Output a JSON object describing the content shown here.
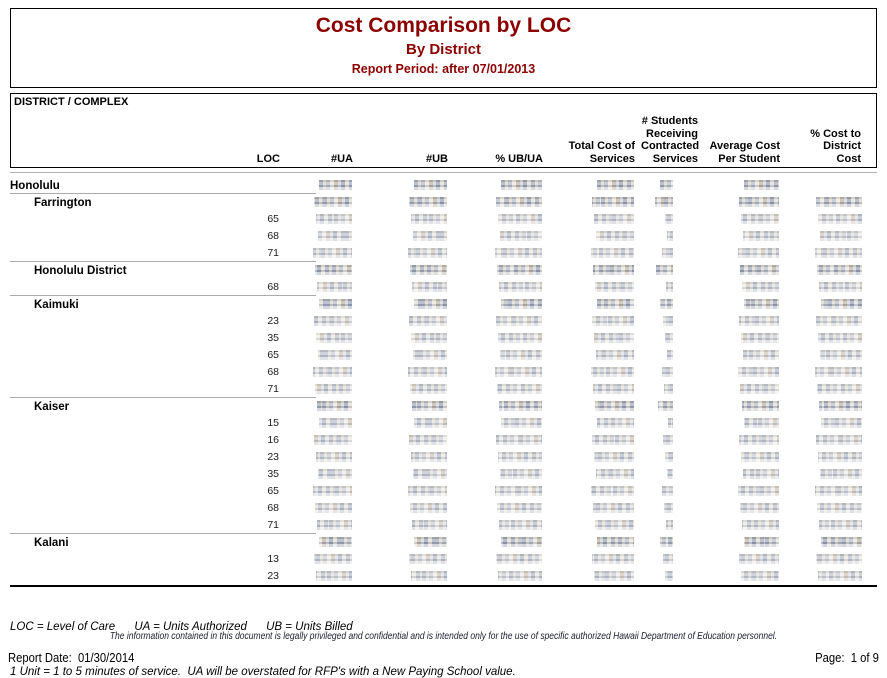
{
  "title": {
    "main": "Cost Comparison by LOC",
    "sub": "By District",
    "period": "Report Period:  after 07/01/2013"
  },
  "header": {
    "district_complex": "DISTRICT / COMPLEX",
    "columns": [
      "LOC",
      "#UA",
      "#UB",
      "% UB/UA",
      "Total Cost of\nServices",
      "# Students\nReceiving\nContracted\nServices",
      "Average Cost\nPer Student",
      "% Cost to\nDistrict\nCost"
    ]
  },
  "table": {
    "redaction_note": "numeric values are pixelated/redacted in source image",
    "blur_widths": {
      "ua": 36,
      "ub": 36,
      "pct": 44,
      "total": 40,
      "students_wide": 16,
      "students_narrow": 8,
      "avg": 38,
      "pctcost": 44
    },
    "rows": [
      {
        "type": "district",
        "label": "Honolulu"
      },
      {
        "type": "complex",
        "label": "Farrington"
      },
      {
        "type": "loc",
        "loc": "65"
      },
      {
        "type": "loc",
        "loc": "68"
      },
      {
        "type": "loc",
        "loc": "71"
      },
      {
        "type": "complex",
        "label": "Honolulu District"
      },
      {
        "type": "loc",
        "loc": "68"
      },
      {
        "type": "complex",
        "label": "Kaimuki"
      },
      {
        "type": "loc",
        "loc": "23"
      },
      {
        "type": "loc",
        "loc": "35"
      },
      {
        "type": "loc",
        "loc": "65"
      },
      {
        "type": "loc",
        "loc": "68"
      },
      {
        "type": "loc",
        "loc": "71"
      },
      {
        "type": "complex",
        "label": "Kaiser"
      },
      {
        "type": "loc",
        "loc": "15"
      },
      {
        "type": "loc",
        "loc": "16"
      },
      {
        "type": "loc",
        "loc": "23"
      },
      {
        "type": "loc",
        "loc": "35"
      },
      {
        "type": "loc",
        "loc": "65"
      },
      {
        "type": "loc",
        "loc": "68"
      },
      {
        "type": "loc",
        "loc": "71"
      },
      {
        "type": "complex",
        "label": "Kalani"
      },
      {
        "type": "loc",
        "loc": "13"
      },
      {
        "type": "loc",
        "loc": "23"
      }
    ]
  },
  "footer": {
    "note1": "LOC = Level of Care      UA = Units Authorized      UB = Units Billed",
    "note2": "1 Unit = 1 to 5 minutes of service.  UA will be overstated for RFP's with a New Paying School value.",
    "confidential": "The information contained in this document is legally privileged and confidential and is intended only for the use of specific authorized Hawaii Department of Education personnel.",
    "report_date": "Report Date:  01/30/2014",
    "page": "Page:  1 of 9"
  }
}
